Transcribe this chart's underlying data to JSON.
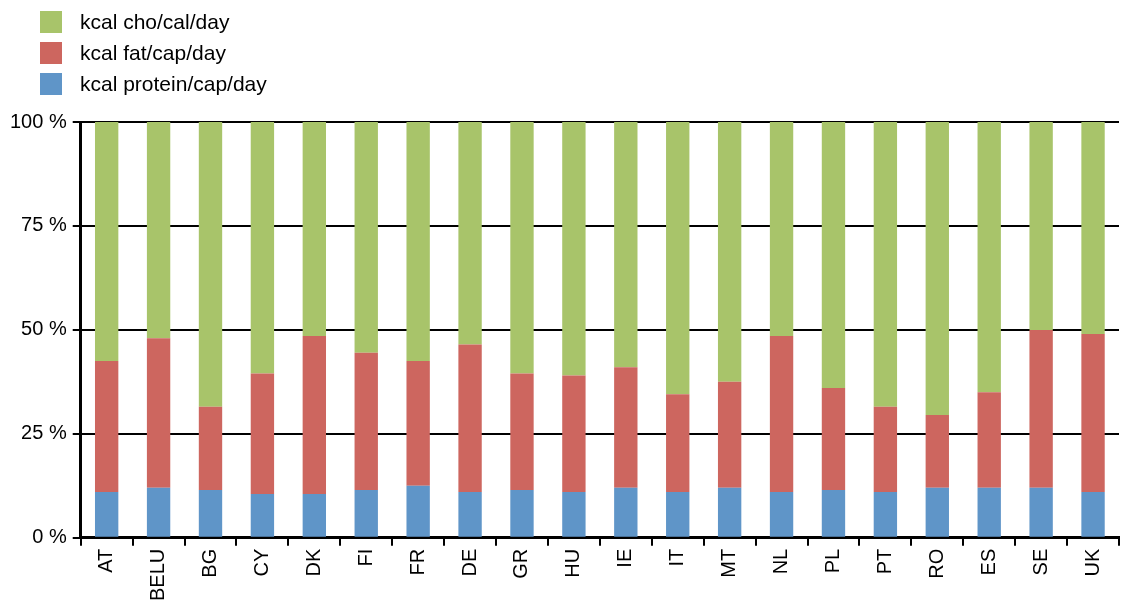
{
  "chart_data": {
    "type": "bar",
    "stacked": true,
    "categories": [
      "AT",
      "BELU",
      "BG",
      "CY",
      "DK",
      "FI",
      "FR",
      "DE",
      "GR",
      "HU",
      "IE",
      "IT",
      "MT",
      "NL",
      "PL",
      "PT",
      "RO",
      "ES",
      "SE",
      "UK"
    ],
    "series": [
      {
        "name": "kcal protein/cap/day",
        "color": "#5f95c8",
        "values": [
          11,
          12,
          11.5,
          10.5,
          10.5,
          11.5,
          12.5,
          11,
          11.5,
          11,
          12,
          11,
          12,
          11,
          11.5,
          11,
          12,
          12,
          12,
          11
        ]
      },
      {
        "name": "kcal fat/cap/day",
        "color": "#cd665f",
        "values": [
          31.5,
          36,
          20,
          29,
          38,
          33,
          30,
          35.5,
          28,
          28,
          29,
          23.5,
          25.5,
          37.5,
          24.5,
          20.5,
          17.5,
          23,
          38,
          38
        ]
      },
      {
        "name": "kcal cho/cal/day",
        "color": "#a8c46a",
        "values": [
          57.5,
          52,
          68.5,
          60.5,
          51.5,
          55.5,
          57.5,
          53.5,
          60.5,
          61,
          59,
          65.5,
          62.5,
          51.5,
          64,
          68.5,
          70.5,
          65,
          50,
          51
        ]
      }
    ],
    "ylim": [
      0,
      100
    ],
    "yticks": [
      {
        "value": 0,
        "label": "0 %"
      },
      {
        "value": 25,
        "label": "25 %"
      },
      {
        "value": 50,
        "label": "50 %"
      },
      {
        "value": 75,
        "label": "75 %"
      },
      {
        "value": 100,
        "label": "100 %"
      }
    ],
    "grid": "y",
    "legend": "top left"
  }
}
